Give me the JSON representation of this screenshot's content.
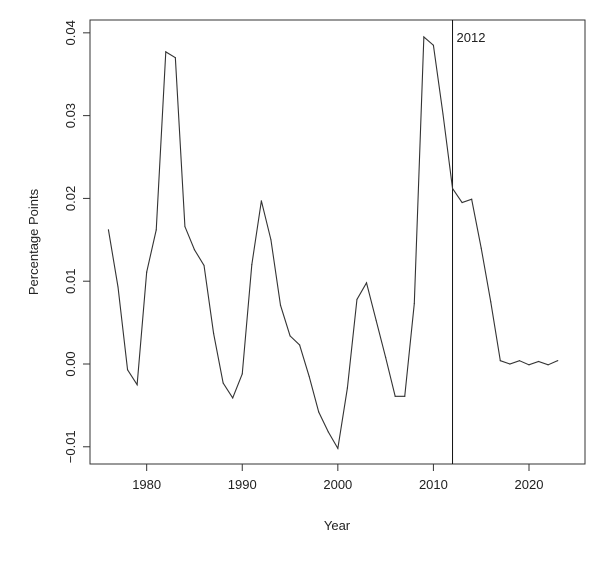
{
  "chart_data": {
    "type": "line",
    "title": "",
    "xlabel": "Year",
    "ylabel": "Percentage Points",
    "xlim": [
      1974.07,
      2025.86
    ],
    "ylim": [
      -0.01208,
      0.04155
    ],
    "xticks": [
      1980,
      1990,
      2000,
      2010,
      2020
    ],
    "yticks": [
      -0.01,
      0.0,
      0.01,
      0.02,
      0.03,
      0.04
    ],
    "ytick_labels": [
      "-0.01",
      "0.00",
      "0.01",
      "0.02",
      "0.03",
      "0.04"
    ],
    "grid": false,
    "line_color": "#333333",
    "vline": {
      "x": 2012,
      "label": "2012"
    },
    "x": [
      1976,
      1977,
      1978,
      1979,
      1980,
      1981,
      1982,
      1983,
      1984,
      1985,
      1986,
      1987,
      1988,
      1989,
      1990,
      1991,
      1992,
      1993,
      1994,
      1995,
      1996,
      1997,
      1998,
      1999,
      2000,
      2001,
      2002,
      2003,
      2004,
      2005,
      2006,
      2007,
      2008,
      2009,
      2010,
      2011,
      2012,
      2013,
      2014,
      2015,
      2016,
      2017,
      2018,
      2019,
      2020,
      2021,
      2022,
      2023
    ],
    "y": [
      0.0162,
      0.0093,
      -0.0007,
      -0.0025,
      0.0111,
      0.0162,
      0.0377,
      0.037,
      0.0166,
      0.0138,
      0.0119,
      0.0037,
      -0.0023,
      -0.0041,
      -0.0012,
      0.012,
      0.0197,
      0.015,
      0.0071,
      0.0034,
      0.0023,
      -0.0015,
      -0.0058,
      -0.0082,
      -0.0102,
      -0.0029,
      0.0078,
      0.0098,
      0.0053,
      0.0008,
      -0.0039,
      -0.0039,
      0.0073,
      0.0395,
      0.0385,
      0.0302,
      0.0212,
      0.0195,
      0.0199,
      0.014,
      0.0075,
      0.0004,
      0.0,
      0.0004,
      -0.0001,
      0.0003,
      -0.0001,
      0.0004
    ]
  }
}
